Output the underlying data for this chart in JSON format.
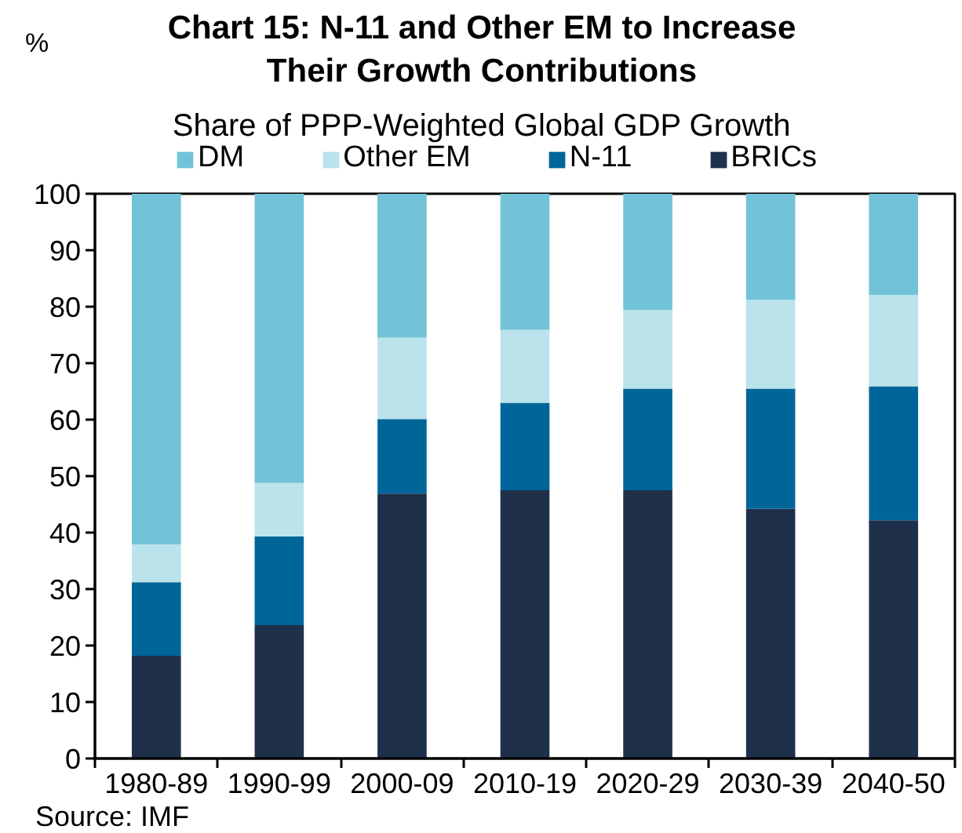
{
  "chart_data": {
    "type": "bar",
    "title": "Chart 15: N-11 and Other EM to Increase Their Growth Contributions",
    "subtitle": "Share of PPP-Weighted Global GDP Growth",
    "ylabel": "%",
    "categories": [
      "1980-89",
      "1990-99",
      "2000-09",
      "2010-19",
      "2020-29",
      "2030-39",
      "2040-50"
    ],
    "stacked": true,
    "series": [
      {
        "name": "BRICs",
        "color": "#1f304a",
        "values": [
          18.2,
          23.6,
          46.9,
          47.5,
          47.5,
          44.2,
          42.2
        ]
      },
      {
        "name": "N-11",
        "color": "#006699",
        "values": [
          13.0,
          15.7,
          13.2,
          15.5,
          18.0,
          21.3,
          23.7
        ]
      },
      {
        "name": "Other EM",
        "color": "#bbe3eb",
        "values": [
          6.7,
          9.5,
          14.4,
          12.9,
          13.9,
          15.7,
          16.2
        ]
      },
      {
        "name": "DM",
        "color": "#72c3d8",
        "values": [
          62.1,
          51.2,
          25.5,
          24.1,
          20.6,
          18.8,
          17.9
        ]
      }
    ],
    "ylim": [
      0,
      100
    ],
    "yticks": [
      0,
      10,
      20,
      30,
      40,
      50,
      60,
      70,
      80,
      90,
      100
    ],
    "grid": false,
    "legend": "top",
    "annotations": [
      "Source: IMF"
    ]
  }
}
